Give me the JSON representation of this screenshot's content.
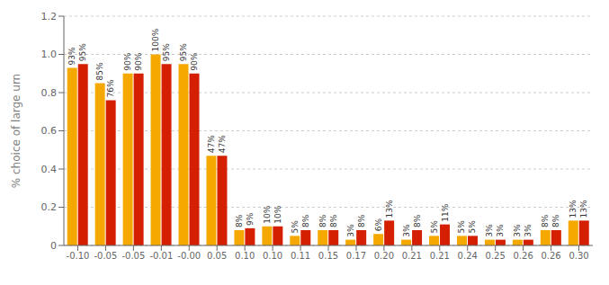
{
  "chart_data": {
    "type": "bar",
    "ylabel": "% choice of large urn",
    "categories": [
      "-0.10",
      "-0.05",
      "-0.05",
      "-0.01",
      "-0.00",
      "0.05",
      "0.10",
      "0.10",
      "0.11",
      "0.15",
      "0.17",
      "0.20",
      "0.21",
      "0.21",
      "0.24",
      "0.25",
      "0.26",
      "0.26",
      "0.30"
    ],
    "series": [
      {
        "color": "#F5A800",
        "values": [
          0.93,
          0.85,
          0.9,
          1.0,
          0.95,
          0.47,
          0.08,
          0.1,
          0.05,
          0.08,
          0.03,
          0.06,
          0.03,
          0.05,
          0.05,
          0.03,
          0.03,
          0.08,
          0.13
        ],
        "value_labels": [
          "93%",
          "85%",
          "90%",
          "100%",
          "95%",
          "47%",
          "8%",
          "10%",
          "5%",
          "8%",
          "3%",
          "6%",
          "3%",
          "5%",
          "5%",
          "3%",
          "3%",
          "8%",
          "13%"
        ]
      },
      {
        "color": "#D42000",
        "values": [
          0.95,
          0.76,
          0.9,
          0.95,
          0.9,
          0.47,
          0.09,
          0.1,
          0.08,
          0.08,
          0.08,
          0.13,
          0.08,
          0.11,
          0.05,
          0.03,
          0.03,
          0.08,
          0.13
        ],
        "value_labels": [
          "95%",
          "76%",
          "90%",
          "95%",
          "90%",
          "47%",
          "9%",
          "10%",
          "8%",
          "8%",
          "8%",
          "13%",
          "8%",
          "11%",
          "5%",
          "3%",
          "3%",
          "8%",
          "13%"
        ]
      }
    ],
    "ylim": [
      0,
      1.2
    ],
    "yticks": [
      0,
      0.2,
      0.4,
      0.6,
      0.8,
      {
        "value": 1.0,
        "label": "1.0"
      },
      1.2
    ],
    "grid": true,
    "data_labels": true
  }
}
